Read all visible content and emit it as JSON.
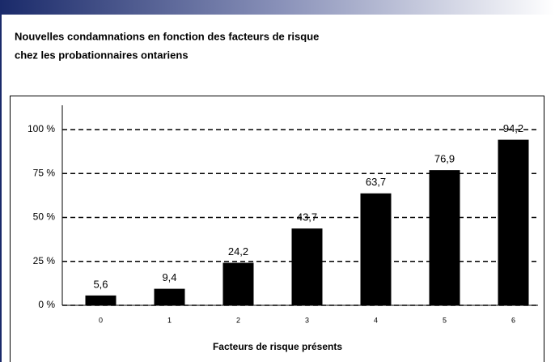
{
  "chart_data": {
    "type": "bar",
    "title": "Nouvelles condamnations en fonction des facteurs de risque",
    "subtitle": "chez les probationnaires ontariens",
    "x_label": "Facteurs de risque présents",
    "categories": [
      "0",
      "1",
      "2",
      "3",
      "4",
      "5",
      "6"
    ],
    "values": [
      5.6,
      9.4,
      24.2,
      43.7,
      63.7,
      76.9,
      94.2
    ],
    "value_labels": [
      "5,6",
      "9,4",
      "24,2",
      "43,7",
      "63,7",
      "76,9",
      "94,2"
    ],
    "color": "#000000",
    "ylim": [
      0,
      100
    ],
    "yticks": [
      {
        "value": 0,
        "label": "0 %"
      },
      {
        "value": 25,
        "label": "25 %"
      },
      {
        "value": 50,
        "label": "50 %"
      },
      {
        "value": 75,
        "label": "75 %"
      },
      {
        "value": 100,
        "label": "100 %"
      }
    ],
    "grid": true
  }
}
